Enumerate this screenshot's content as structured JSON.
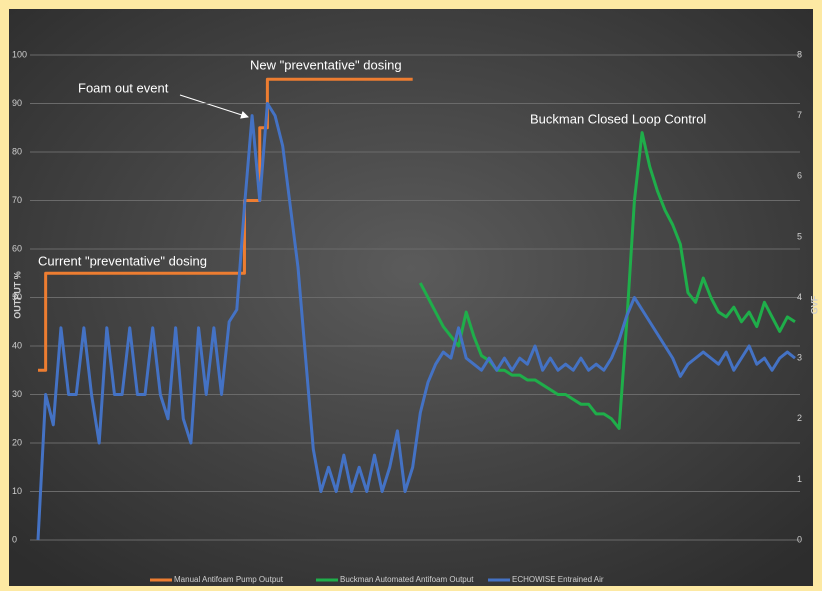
{
  "chart_data": {
    "type": "line",
    "y_label": "OUTPUT %",
    "y2_label": "GVF",
    "annotations": [
      "Foam out event",
      "New \"preventative\" dosing",
      "Current \"preventative\" dosing",
      "Buckman Closed Loop Control"
    ],
    "ylim": [
      0,
      100
    ],
    "yticks": [
      0,
      10,
      20,
      30,
      40,
      50,
      60,
      70,
      80,
      90,
      100
    ],
    "y2lim": [
      0,
      8
    ],
    "y2ticks": [
      0,
      1,
      2,
      3,
      4,
      5,
      6,
      7,
      8
    ],
    "grid": true,
    "legend": "bottom",
    "series": [
      {
        "name": "Manual Antifoam Pump Output",
        "color": "#ed7d31",
        "step": true,
        "values": [
          35,
          55,
          55,
          55,
          55,
          55,
          55,
          55,
          55,
          55,
          55,
          55,
          55,
          55,
          55,
          55,
          55,
          55,
          55,
          55,
          55,
          55,
          55,
          55,
          55,
          55,
          55,
          70,
          70,
          85,
          95,
          95,
          95,
          95,
          95,
          95,
          95,
          95,
          95,
          95,
          95,
          95,
          95,
          95,
          95,
          95,
          95,
          95,
          95,
          95,
          null,
          null,
          null,
          null,
          null,
          null,
          null,
          null,
          null,
          null,
          null,
          null,
          null,
          null,
          null,
          null,
          null,
          null,
          null,
          null,
          null,
          null,
          null,
          null,
          null,
          null,
          null,
          null,
          null,
          null,
          null,
          null,
          null,
          null,
          null,
          null,
          null,
          null,
          null,
          null,
          null,
          null,
          null,
          null,
          null,
          null,
          null,
          null,
          null,
          null
        ]
      },
      {
        "name": "Buckman Automated Antifoam Output",
        "color": "#1fae4a",
        "values": [
          null,
          null,
          null,
          null,
          null,
          null,
          null,
          null,
          null,
          null,
          null,
          null,
          null,
          null,
          null,
          null,
          null,
          null,
          null,
          null,
          null,
          null,
          null,
          null,
          null,
          null,
          null,
          null,
          null,
          null,
          null,
          null,
          null,
          null,
          null,
          null,
          null,
          null,
          null,
          null,
          null,
          null,
          null,
          null,
          null,
          null,
          null,
          null,
          null,
          null,
          53,
          50,
          47,
          44,
          42,
          40,
          47,
          42,
          38,
          37,
          35,
          35,
          34,
          34,
          33,
          33,
          32,
          31,
          30,
          30,
          29,
          28,
          28,
          26,
          26,
          25,
          23,
          45,
          70,
          84,
          77,
          72,
          68,
          65,
          61,
          51,
          49,
          54,
          50,
          47,
          46,
          48,
          45,
          47,
          44,
          49,
          46,
          43,
          46,
          45
        ]
      },
      {
        "name": "ECHOWISE Entrained Air",
        "color": "#4472c4",
        "axis": "y2",
        "values": [
          0,
          2.4,
          1.9,
          3.5,
          2.4,
          2.4,
          3.5,
          2.4,
          1.6,
          3.5,
          2.4,
          2.4,
          3.5,
          2.4,
          2.4,
          3.5,
          2.4,
          2.0,
          3.5,
          2.0,
          1.6,
          3.5,
          2.4,
          3.5,
          2.4,
          3.6,
          3.8,
          5.5,
          7.0,
          5.6,
          7.2,
          7.0,
          6.5,
          5.5,
          4.5,
          3.0,
          1.5,
          0.8,
          1.2,
          0.8,
          1.4,
          0.8,
          1.2,
          0.8,
          1.4,
          0.8,
          1.2,
          1.8,
          0.8,
          1.2,
          2.1,
          2.6,
          2.9,
          3.1,
          3.0,
          3.5,
          3.0,
          2.9,
          2.8,
          3.0,
          2.8,
          3.0,
          2.8,
          3.0,
          2.9,
          3.2,
          2.8,
          3.0,
          2.8,
          2.9,
          2.8,
          3.0,
          2.8,
          2.9,
          2.8,
          3.0,
          3.3,
          3.7,
          4.0,
          3.8,
          3.6,
          3.4,
          3.2,
          3.0,
          2.7,
          2.9,
          3.0,
          3.1,
          3.0,
          2.9,
          3.1,
          2.8,
          3.0,
          3.2,
          2.9,
          3.0,
          2.8,
          3.0,
          3.1,
          3.0
        ]
      }
    ]
  }
}
